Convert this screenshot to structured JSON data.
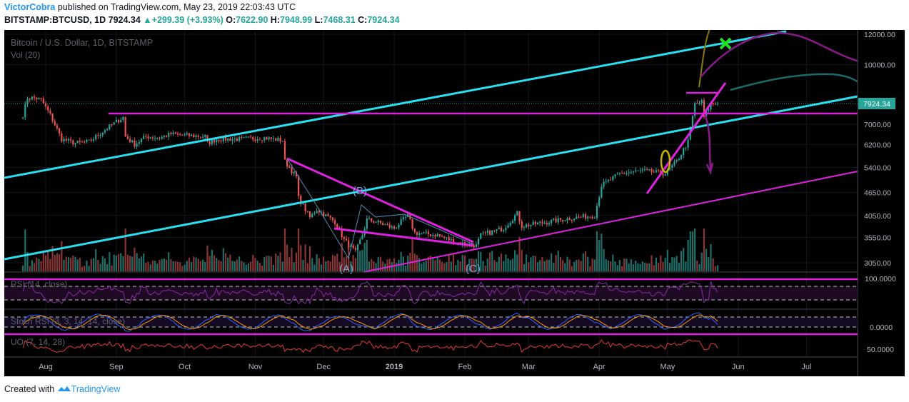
{
  "header": {
    "author": "VictorCobra",
    "published_text": "published on TradingView.com, May 23, 2019 22:03:43 UTC",
    "symbol": "BITSTAMP:BTCUSD, 1D",
    "last": "7924.34",
    "change": "+299.39 (+3.93%)",
    "open_label": "O:",
    "open": "7622.90",
    "high_label": "H:",
    "high": "7948.99",
    "low_label": "L:",
    "low": "7468.31",
    "close_label": "C:",
    "close": "7924.34"
  },
  "chart": {
    "title": "Bitcoin / U.S. Dollar, 1D, BITSTAMP",
    "volume_label": "Vol (20)",
    "last_price_tag": "7924.34",
    "rsi_label": "RSI (14, close)",
    "stoch_label": "Stoch RSI (3, 3, 14, 14, close)",
    "uo_label": "UO (7, 14, 28)",
    "rsi_scale": "100.0000",
    "stoch_scale": "0.0000",
    "uo_scale": "50.0000",
    "wave_labels": {
      "a": "(A)",
      "b": "(B)",
      "c": "(C)"
    },
    "colors": {
      "up": "#26a69a",
      "down": "#ef5350",
      "cyan": "#28e0f0",
      "magenta": "#e020e0",
      "background": "#000000"
    }
  },
  "footer": {
    "created_with": "Created with",
    "brand": "TradingView"
  },
  "chart_data": {
    "type": "candlestick",
    "title": "Bitcoin / U.S. Dollar, 1D, BITSTAMP",
    "log_scale": true,
    "price_ticks": [
      12000,
      10000,
      8000,
      7000,
      6200,
      5400,
      4650,
      4050,
      3550,
      3050
    ],
    "price_tick_labels": [
      "12000.00",
      "10000.00",
      "",
      "7000.00",
      "6200.00",
      "5400.00",
      "4650.00",
      "4050.00",
      "3550.00",
      "3050.00"
    ],
    "x_tick_labels": [
      "Aug",
      "Sep",
      "Oct",
      "Nov",
      "Dec",
      "2019",
      "Feb",
      "Mar",
      "Apr",
      "May",
      "Jun",
      "Jul"
    ],
    "last_price": 7924.34,
    "price_path": [
      [
        "2018-07-22",
        7400
      ],
      [
        "2018-07-24",
        8200
      ],
      [
        "2018-07-27",
        8200
      ],
      [
        "2018-07-30",
        8100
      ],
      [
        "2018-08-03",
        7400
      ],
      [
        "2018-08-08",
        6400
      ],
      [
        "2018-08-14",
        6250
      ],
      [
        "2018-08-20",
        6300
      ],
      [
        "2018-08-26",
        6700
      ],
      [
        "2018-09-01",
        7100
      ],
      [
        "2018-09-04",
        7300
      ],
      [
        "2018-09-05",
        6500
      ],
      [
        "2018-09-09",
        6200
      ],
      [
        "2018-09-14",
        6500
      ],
      [
        "2018-09-20",
        6450
      ],
      [
        "2018-09-25",
        6600
      ],
      [
        "2018-10-01",
        6550
      ],
      [
        "2018-10-10",
        6500
      ],
      [
        "2018-10-11",
        6250
      ],
      [
        "2018-10-15",
        6400
      ],
      [
        "2018-10-25",
        6400
      ],
      [
        "2018-11-05",
        6450
      ],
      [
        "2018-11-13",
        6350
      ],
      [
        "2018-11-14",
        5600
      ],
      [
        "2018-11-19",
        5100
      ],
      [
        "2018-11-20",
        4500
      ],
      [
        "2018-11-25",
        4000
      ],
      [
        "2018-11-28",
        4200
      ],
      [
        "2018-12-06",
        3900
      ],
      [
        "2018-12-10",
        3500
      ],
      [
        "2018-12-15",
        3250
      ],
      [
        "2018-12-18",
        3600
      ],
      [
        "2018-12-20",
        3950
      ],
      [
        "2018-12-24",
        3900
      ],
      [
        "2019-01-01",
        3750
      ],
      [
        "2019-01-07",
        4050
      ],
      [
        "2019-01-10",
        3650
      ],
      [
        "2019-01-20",
        3600
      ],
      [
        "2019-01-28",
        3450
      ],
      [
        "2019-02-06",
        3380
      ],
      [
        "2019-02-08",
        3600
      ],
      [
        "2019-02-18",
        3750
      ],
      [
        "2019-02-24",
        4100
      ],
      [
        "2019-02-26",
        3800
      ],
      [
        "2019-03-10",
        3900
      ],
      [
        "2019-03-20",
        3990
      ],
      [
        "2019-03-30",
        4050
      ],
      [
        "2019-04-02",
        4850
      ],
      [
        "2019-04-10",
        5200
      ],
      [
        "2019-04-20",
        5300
      ],
      [
        "2019-04-30",
        5200
      ],
      [
        "2019-05-05",
        5600
      ],
      [
        "2019-05-10",
        6300
      ],
      [
        "2019-05-13",
        7900
      ],
      [
        "2019-05-16",
        8000
      ],
      [
        "2019-05-17",
        7300
      ],
      [
        "2019-05-20",
        7900
      ],
      [
        "2019-05-23",
        7924
      ]
    ]
  }
}
